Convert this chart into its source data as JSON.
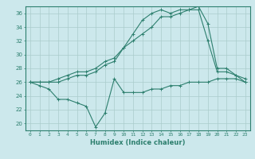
{
  "title": "",
  "xlabel": "Humidex (Indice chaleur)",
  "bg_color": "#cce8ec",
  "line_color": "#2d7f6e",
  "grid_color": "#aacccc",
  "xlim": [
    -0.5,
    23.5
  ],
  "ylim": [
    19,
    37
  ],
  "xticks": [
    0,
    1,
    2,
    3,
    4,
    5,
    6,
    7,
    8,
    9,
    10,
    11,
    12,
    13,
    14,
    15,
    16,
    17,
    18,
    19,
    20,
    21,
    22,
    23
  ],
  "yticks": [
    20,
    22,
    24,
    26,
    28,
    30,
    32,
    34,
    36
  ],
  "series1_x": [
    0,
    1,
    2,
    3,
    4,
    5,
    6,
    7,
    8,
    9,
    10,
    11,
    12,
    13,
    14,
    15,
    16,
    17,
    18,
    19,
    20,
    21,
    22,
    23
  ],
  "series1_y": [
    26,
    25.5,
    25,
    23.5,
    23.5,
    23,
    22.5,
    19.5,
    21.5,
    26.5,
    24.5,
    24.5,
    24.5,
    25,
    25,
    25.5,
    25.5,
    26,
    26,
    26,
    26.5,
    26.5,
    26.5,
    26
  ],
  "series2_x": [
    0,
    1,
    2,
    3,
    4,
    5,
    6,
    7,
    8,
    9,
    10,
    11,
    12,
    13,
    14,
    15,
    16,
    17,
    18,
    19,
    20,
    21,
    22,
    23
  ],
  "series2_y": [
    26,
    26,
    26,
    26,
    26.5,
    27,
    27,
    27.5,
    28.5,
    29,
    31,
    32,
    33,
    34,
    35.5,
    35.5,
    36,
    36.5,
    36.5,
    32,
    27.5,
    27.5,
    27,
    26
  ],
  "series3_x": [
    0,
    1,
    2,
    3,
    4,
    5,
    6,
    7,
    8,
    9,
    10,
    11,
    12,
    13,
    14,
    15,
    16,
    17,
    18,
    19,
    20,
    21,
    22,
    23
  ],
  "series3_y": [
    26,
    26,
    26,
    26.5,
    27,
    27.5,
    27.5,
    28,
    29,
    29.5,
    31,
    33,
    35,
    36,
    36.5,
    36,
    36.5,
    36.5,
    37,
    34.5,
    28,
    28,
    27,
    26.5
  ]
}
